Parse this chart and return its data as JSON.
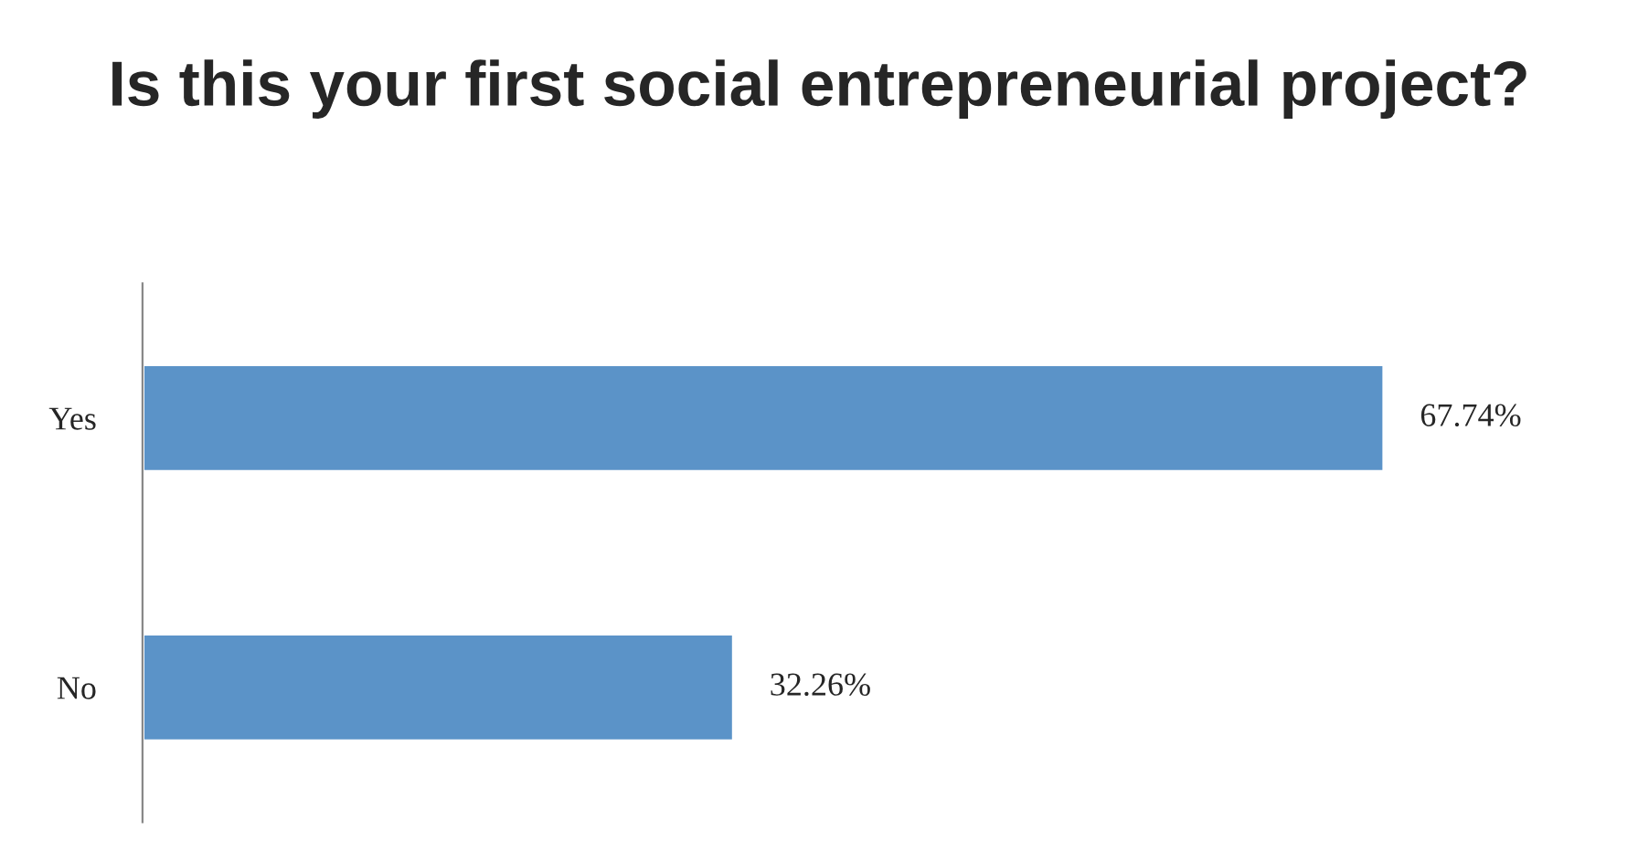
{
  "chart_data": {
    "type": "bar",
    "orientation": "horizontal",
    "title": "Is this your first social entrepreneurial project?",
    "categories": [
      "Yes",
      "No"
    ],
    "values": [
      67.74,
      32.26
    ],
    "color": "#5b93c8",
    "value_labels": [
      "67.74%",
      "32.26%"
    ],
    "grid": false,
    "legend": false
  }
}
